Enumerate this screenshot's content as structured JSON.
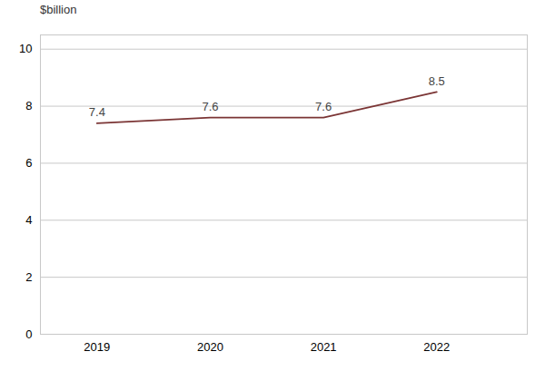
{
  "chart_data": {
    "type": "line",
    "x": [
      2019,
      2020,
      2021,
      2022
    ],
    "values": [
      7.4,
      7.6,
      7.6,
      8.5
    ],
    "color": "#7b3535",
    "y_label": "$billion",
    "xlim": [
      2018.5,
      2022.8
    ],
    "xticks": [
      2019,
      2020,
      2021,
      2022
    ],
    "ylim": [
      0,
      10.5
    ],
    "yticks": [
      0,
      2,
      4,
      6,
      8,
      10
    ],
    "grid": true,
    "data_labels": true
  }
}
